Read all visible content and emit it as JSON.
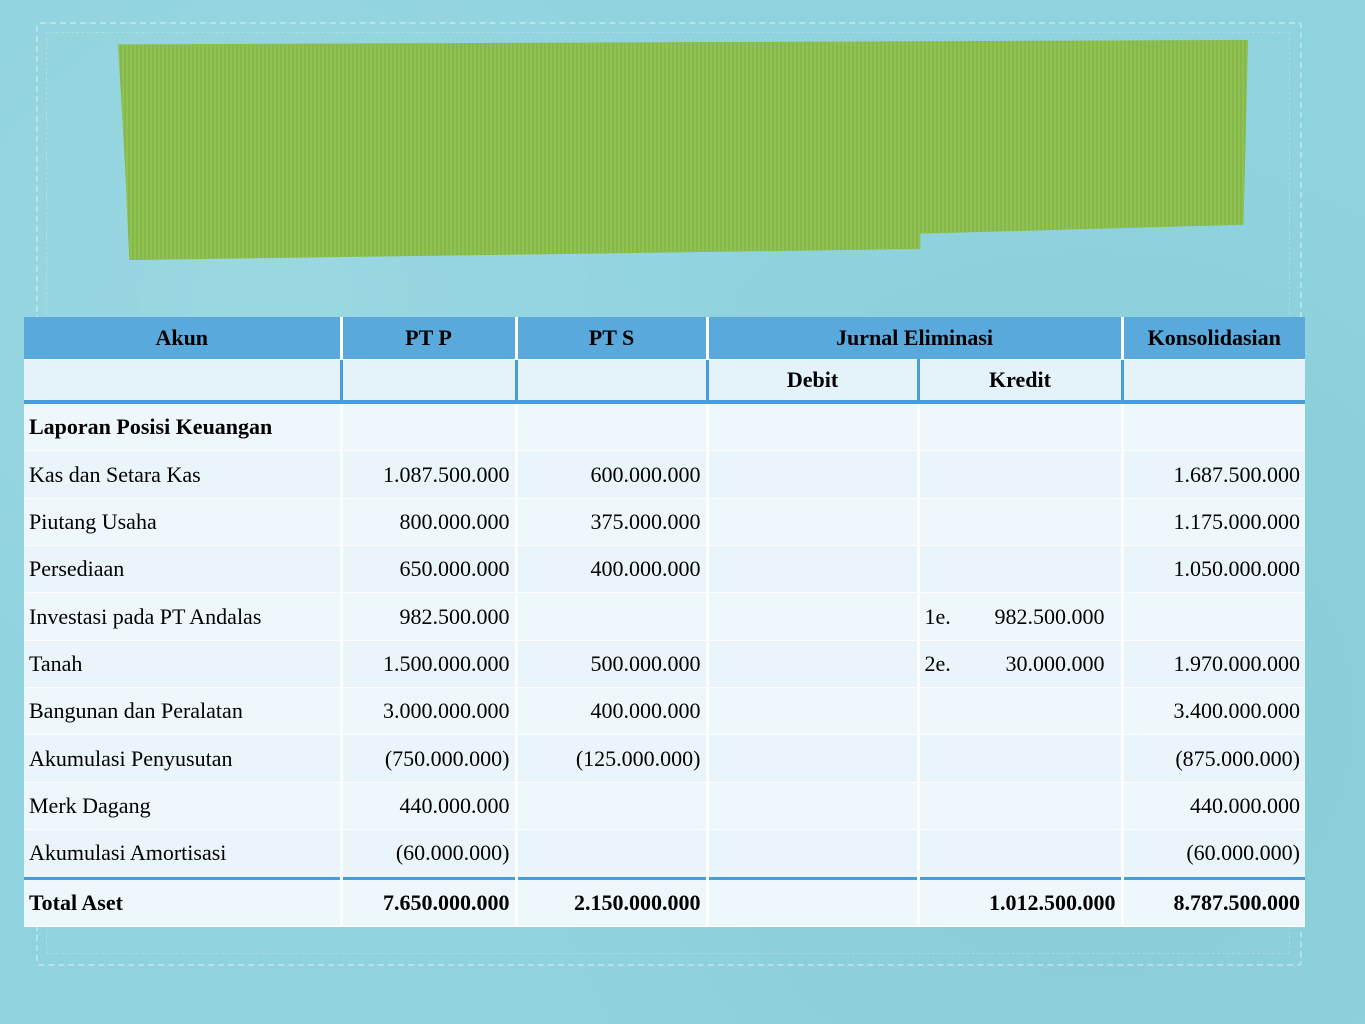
{
  "table": {
    "headers": [
      "Akun",
      "PT P",
      "PT S",
      "Jurnal Eliminasi",
      "Konsolidasian"
    ],
    "subheaders": [
      "",
      "",
      "",
      "Debit",
      "Kredit",
      ""
    ],
    "rows": [
      {
        "akun": "Laporan Posisi Keuangan",
        "pt_p": "",
        "pt_s": "",
        "debit": "",
        "kredit_ref": "",
        "kredit": "",
        "konsolidasian": ""
      },
      {
        "akun": "Kas dan Setara Kas",
        "pt_p": "1.087.500.000",
        "pt_s": "600.000.000",
        "debit": "",
        "kredit_ref": "",
        "kredit": "",
        "konsolidasian": "1.687.500.000"
      },
      {
        "akun": "Piutang Usaha",
        "pt_p": "800.000.000",
        "pt_s": "375.000.000",
        "debit": "",
        "kredit_ref": "",
        "kredit": "",
        "konsolidasian": "1.175.000.000"
      },
      {
        "akun": "Persediaan",
        "pt_p": "650.000.000",
        "pt_s": "400.000.000",
        "debit": "",
        "kredit_ref": "",
        "kredit": "",
        "konsolidasian": "1.050.000.000"
      },
      {
        "akun": "Investasi pada PT Andalas",
        "pt_p": "982.500.000",
        "pt_s": "",
        "debit": "",
        "kredit_ref": "1e.",
        "kredit": "982.500.000",
        "konsolidasian": ""
      },
      {
        "akun": "Tanah",
        "pt_p": "1.500.000.000",
        "pt_s": "500.000.000",
        "debit": "",
        "kredit_ref": "2e.",
        "kredit": "30.000.000",
        "konsolidasian": "1.970.000.000"
      },
      {
        "akun": "Bangunan dan Peralatan",
        "pt_p": "3.000.000.000",
        "pt_s": "400.000.000",
        "debit": "",
        "kredit_ref": "",
        "kredit": "",
        "konsolidasian": "3.400.000.000"
      },
      {
        "akun": "Akumulasi Penyusutan",
        "pt_p": "(750.000.000)",
        "pt_s": "(125.000.000)",
        "debit": "",
        "kredit_ref": "",
        "kredit": "",
        "konsolidasian": "(875.000.000)"
      },
      {
        "akun": "Merk Dagang",
        "pt_p": "440.000.000",
        "pt_s": "",
        "debit": "",
        "kredit_ref": "",
        "kredit": "",
        "konsolidasian": "440.000.000"
      },
      {
        "akun": "Akumulasi Amortisasi",
        "pt_p": "(60.000.000)",
        "pt_s": "",
        "debit": "",
        "kredit_ref": "",
        "kredit": "",
        "konsolidasian": "(60.000.000)"
      }
    ],
    "total": {
      "akun": "Total Aset",
      "pt_p": "7.650.000.000",
      "pt_s": "2.150.000.000",
      "debit": "",
      "kredit": "1.012.500.000",
      "konsolidasian": "8.787.500.000"
    }
  },
  "colors": {
    "background": "#8fd3de",
    "paper": "#8abf4c",
    "header": "#5aa9dc",
    "rule": "#4a9cd6",
    "cell": "#e9f5fb"
  }
}
